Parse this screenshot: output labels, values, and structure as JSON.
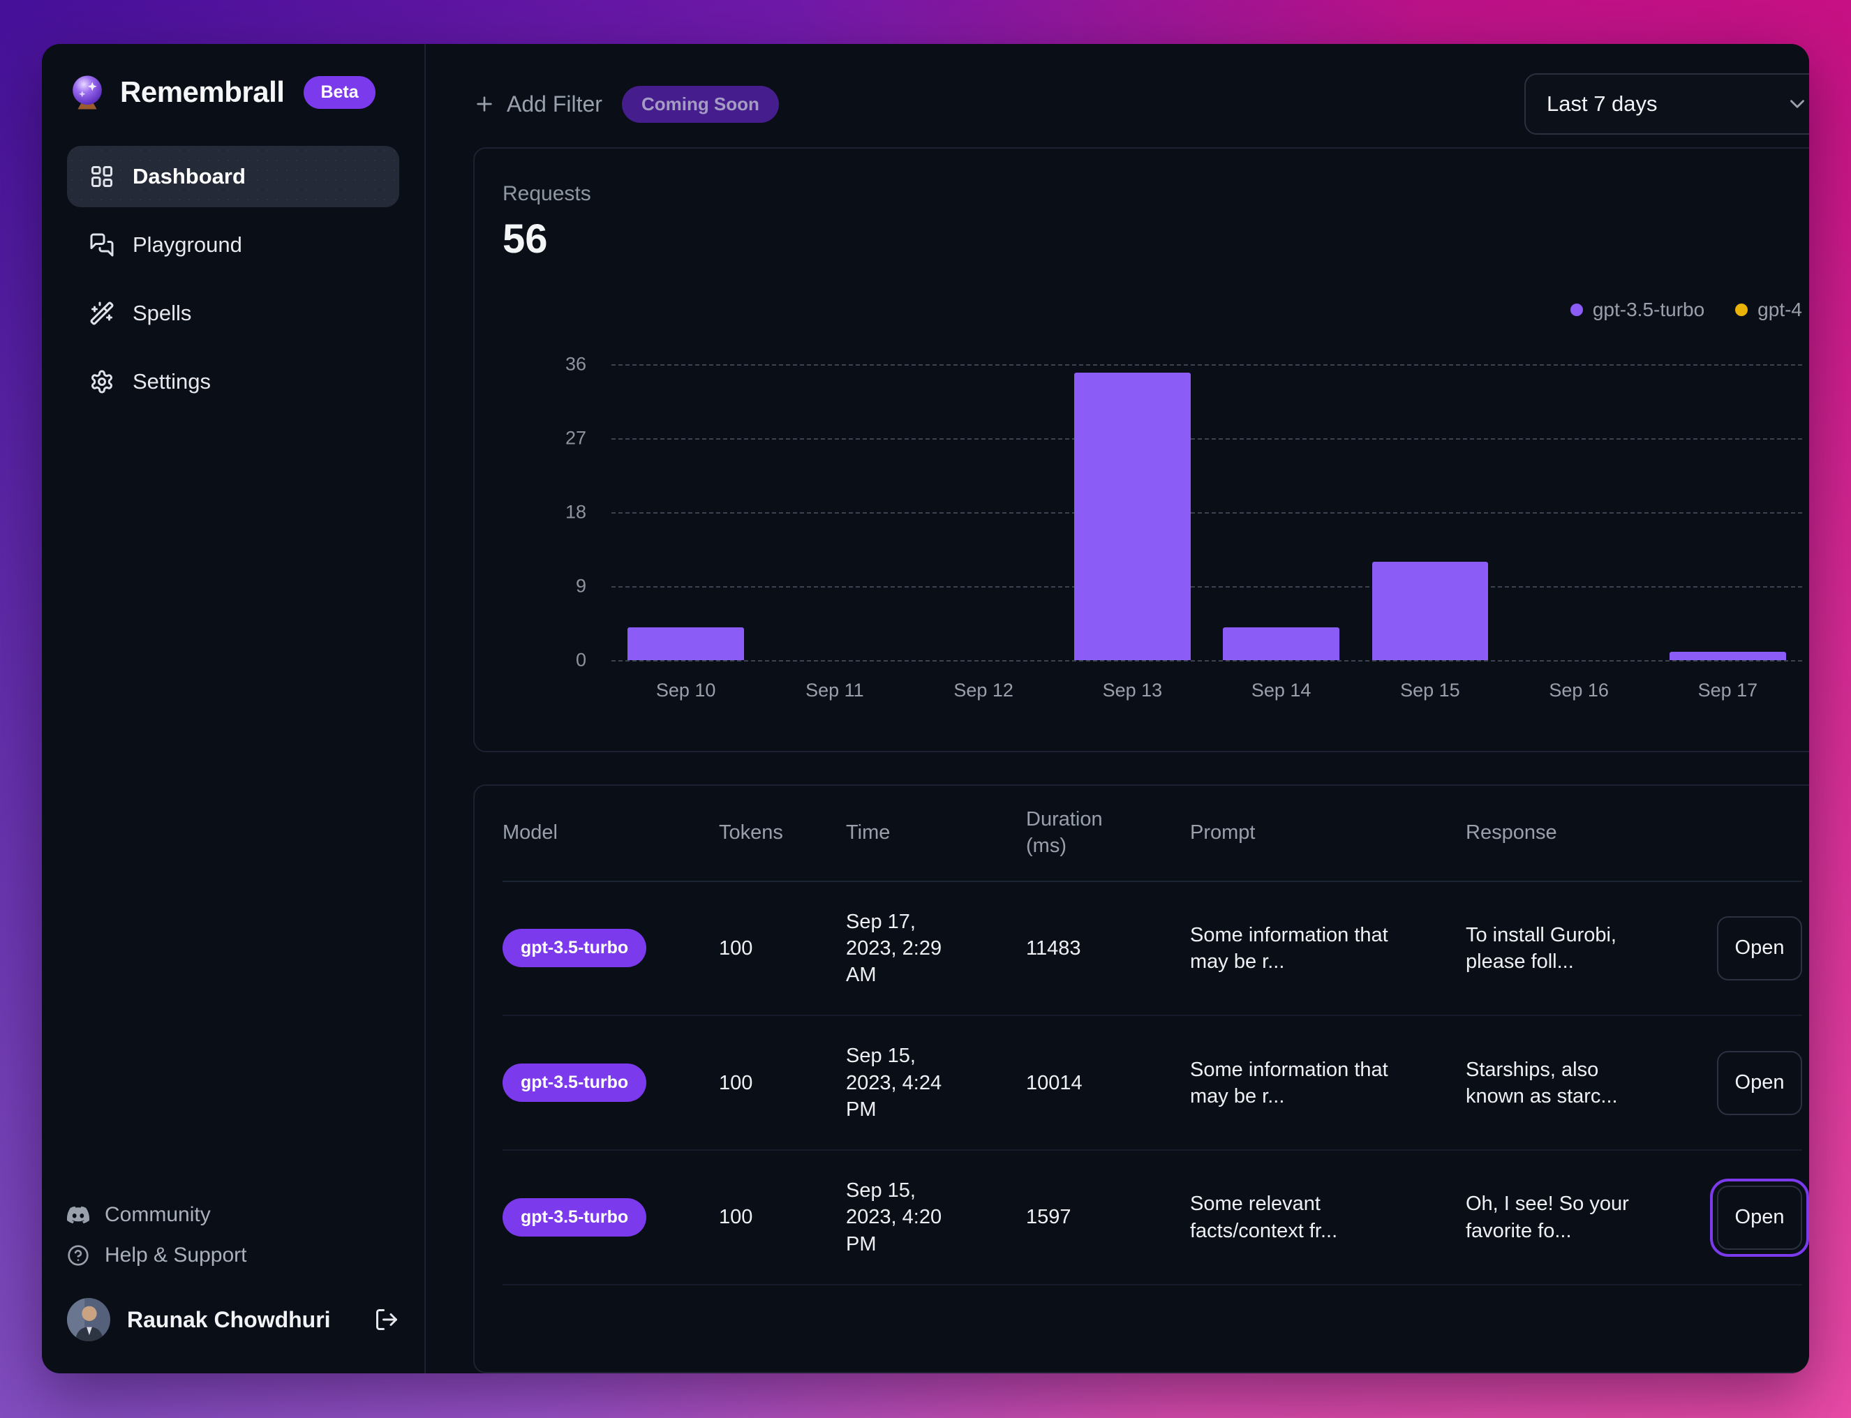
{
  "app": {
    "name": "Remembrall",
    "badge": "Beta"
  },
  "sidebar": {
    "items": [
      {
        "label": "Dashboard",
        "icon": "dashboard-icon",
        "active": true
      },
      {
        "label": "Playground",
        "icon": "playground-icon",
        "active": false
      },
      {
        "label": "Spells",
        "icon": "wand-icon",
        "active": false
      },
      {
        "label": "Settings",
        "icon": "gear-icon",
        "active": false
      }
    ],
    "footer_items": [
      {
        "label": "Community",
        "icon": "discord-icon"
      },
      {
        "label": "Help & Support",
        "icon": "help-icon"
      }
    ],
    "user": {
      "name": "Raunak Chowdhuri"
    }
  },
  "topbar": {
    "add_filter_label": "Add Filter",
    "coming_soon_badge": "Coming Soon",
    "date_range": "Last 7 days"
  },
  "chart_data": {
    "type": "bar",
    "title": "Requests",
    "total": "56",
    "categories": [
      "Sep 10",
      "Sep 11",
      "Sep 12",
      "Sep 13",
      "Sep 14",
      "Sep 15",
      "Sep 16",
      "Sep 17"
    ],
    "series": [
      {
        "name": "gpt-3.5-turbo",
        "color": "#8b5cf6",
        "values": [
          4,
          0,
          0,
          35,
          4,
          12,
          0,
          1
        ]
      },
      {
        "name": "gpt-4",
        "color": "#eab308",
        "values": [
          0,
          0,
          0,
          0,
          0,
          0,
          0,
          0
        ]
      }
    ],
    "ylim": [
      0,
      36
    ],
    "yticks": [
      0,
      9,
      18,
      27,
      36
    ],
    "grid": "horizontal-dashed",
    "legend_position": "top-right"
  },
  "table": {
    "columns": [
      "Model",
      "Tokens",
      "Time",
      "Duration (ms)",
      "Prompt",
      "Response"
    ],
    "open_label": "Open",
    "rows": [
      {
        "model": "gpt-3.5-turbo",
        "tokens": "100",
        "time": "Sep 17, 2023, 2:29 AM",
        "duration_ms": "11483",
        "prompt": "Some information that may be r...",
        "response": "To install Gurobi, please foll...",
        "action_focused": false
      },
      {
        "model": "gpt-3.5-turbo",
        "tokens": "100",
        "time": "Sep 15, 2023, 4:24 PM",
        "duration_ms": "10014",
        "prompt": "Some information that may be r...",
        "response": "Starships, also known as starc...",
        "action_focused": false
      },
      {
        "model": "gpt-3.5-turbo",
        "tokens": "100",
        "time": "Sep 15, 2023, 4:20 PM",
        "duration_ms": "1597",
        "prompt": "Some relevant facts/context fr...",
        "response": "Oh, I see! So your favorite fo...",
        "action_focused": true
      }
    ]
  },
  "colors": {
    "accent": "#7c3aed",
    "bar": "#8b5cf6",
    "gpt4_dot": "#eab308",
    "window_bg": "#0a0e17",
    "bg_top_left": "#4c12a6",
    "bg_top_right": "#e2118a",
    "bg_bottom_left": "#8850dd",
    "bg_bottom_right": "#ea4da8"
  }
}
